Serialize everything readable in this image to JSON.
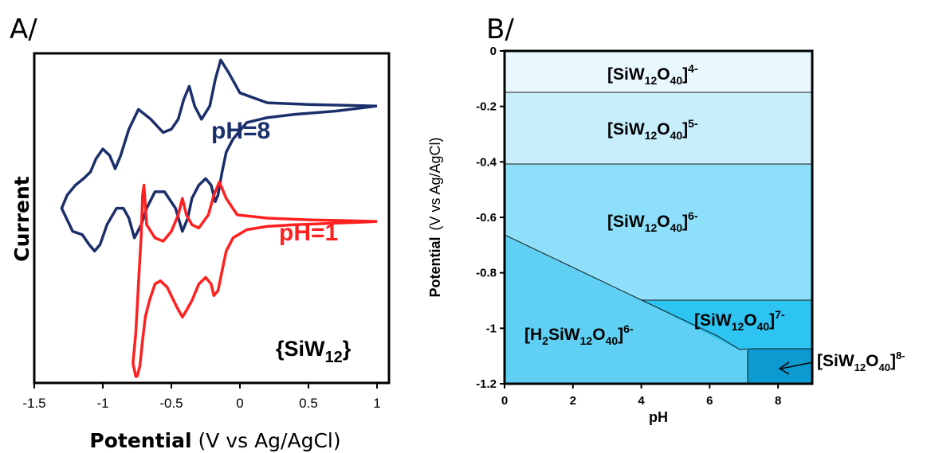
{
  "panels": {
    "a": "A/",
    "b": "B/"
  },
  "chart_data": [
    {
      "type": "line",
      "xlabel_bold": "Potential",
      "xlabel_rest": " (V vs Ag/AgCl)",
      "ylabel": "Current",
      "xlim": [
        -1.5,
        1.0
      ],
      "xticks": [
        "-1.5",
        "-1",
        "-0.5",
        "0",
        "0.5",
        "1"
      ],
      "annotation": "{SiW12}",
      "series": [
        {
          "name": "pH=8",
          "color": "#1b2f6b",
          "x": [
            1.0,
            0.9,
            0.7,
            0.4,
            0.2,
            0.05,
            -0.05,
            -0.1,
            -0.13,
            -0.16,
            -0.18,
            -0.21,
            -0.25,
            -0.3,
            -0.35,
            -0.38,
            -0.42,
            -0.47,
            -0.55,
            -0.62,
            -0.68,
            -0.72,
            -0.77,
            -0.81,
            -0.85,
            -0.9,
            -0.97,
            -1.02,
            -1.06,
            -1.1,
            -1.15,
            -1.22,
            -1.3,
            -1.26,
            -1.2,
            -1.14,
            -1.09,
            -1.05,
            -1.0,
            -0.95,
            -0.91,
            -0.87,
            -0.81,
            -0.74,
            -0.65,
            -0.56,
            -0.5,
            -0.45,
            -0.41,
            -0.37,
            -0.33,
            -0.28,
            -0.22,
            -0.18,
            -0.14,
            -0.08,
            0.0,
            0.2,
            0.5,
            0.8,
            1.0
          ],
          "y": [
            0.84,
            0.835,
            0.825,
            0.815,
            0.805,
            0.79,
            0.74,
            0.7,
            0.64,
            0.57,
            0.55,
            0.6,
            0.62,
            0.6,
            0.56,
            0.5,
            0.46,
            0.53,
            0.58,
            0.58,
            0.53,
            0.48,
            0.44,
            0.5,
            0.53,
            0.53,
            0.48,
            0.42,
            0.4,
            0.42,
            0.45,
            0.46,
            0.53,
            0.57,
            0.6,
            0.62,
            0.64,
            0.68,
            0.71,
            0.69,
            0.65,
            0.69,
            0.77,
            0.83,
            0.8,
            0.76,
            0.77,
            0.8,
            0.86,
            0.9,
            0.84,
            0.8,
            0.84,
            0.92,
            0.98,
            0.94,
            0.88,
            0.85,
            0.845,
            0.842,
            0.84
          ]
        },
        {
          "name": "pH=1",
          "color": "#ff2020",
          "x": [
            1.0,
            0.9,
            0.7,
            0.4,
            0.2,
            0.05,
            -0.05,
            -0.1,
            -0.13,
            -0.16,
            -0.19,
            -0.21,
            -0.25,
            -0.3,
            -0.35,
            -0.39,
            -0.42,
            -0.46,
            -0.53,
            -0.58,
            -0.62,
            -0.66,
            -0.69,
            -0.71,
            -0.73,
            -0.75,
            -0.76,
            -0.78,
            -0.76,
            -0.74,
            -0.72,
            -0.71,
            -0.7,
            -0.68,
            -0.62,
            -0.56,
            -0.5,
            -0.45,
            -0.42,
            -0.39,
            -0.35,
            -0.3,
            -0.23,
            -0.19,
            -0.15,
            -0.1,
            -0.02,
            0.2,
            0.5,
            0.8,
            1.0
          ],
          "y": [
            0.49,
            0.488,
            0.485,
            0.48,
            0.475,
            0.465,
            0.44,
            0.4,
            0.34,
            0.28,
            0.265,
            0.3,
            0.32,
            0.3,
            0.25,
            0.22,
            0.2,
            0.23,
            0.29,
            0.31,
            0.3,
            0.25,
            0.2,
            0.13,
            0.05,
            0.02,
            0.02,
            0.06,
            0.15,
            0.3,
            0.45,
            0.57,
            0.6,
            0.48,
            0.44,
            0.43,
            0.46,
            0.51,
            0.56,
            0.51,
            0.48,
            0.47,
            0.51,
            0.57,
            0.61,
            0.56,
            0.51,
            0.5,
            0.495,
            0.492,
            0.49
          ]
        }
      ]
    },
    {
      "type": "area",
      "xlabel": "pH",
      "ylabel": "Potential",
      "ylabel_units": "(V vs Ag/AgCl)",
      "xlim": [
        0,
        9
      ],
      "ylim": [
        -1.2,
        0
      ],
      "xticks": [
        "0",
        "2",
        "4",
        "6",
        "8"
      ],
      "yticks": [
        "0",
        "-0.2",
        "-0.4",
        "-0.6",
        "-0.8",
        "-1",
        "-1.2"
      ],
      "boundaries": [
        {
          "x": [
            0,
            9
          ],
          "y": [
            -0.15,
            -0.15
          ]
        },
        {
          "x": [
            0,
            9
          ],
          "y": [
            -0.41,
            -0.41
          ]
        },
        {
          "x": [
            0,
            4.0,
            7.1,
            7.3,
            9
          ],
          "y": [
            -0.66,
            -0.9,
            -1.08,
            -1.075,
            -1.075
          ]
        },
        {
          "x": [
            4.0,
            9
          ],
          "y": [
            -0.9,
            -0.9
          ]
        },
        {
          "x": [
            7.1,
            7.1
          ],
          "y": [
            -1.08,
            -1.2
          ]
        }
      ],
      "regions": [
        {
          "species": "[SiW12O40]4-",
          "color": "#e9f8fe"
        },
        {
          "species": "[SiW12O40]5-",
          "color": "#c8eefc"
        },
        {
          "species": "[SiW12O40]6-",
          "color": "#8ee0fa"
        },
        {
          "species": "[H2SiW12O40]6-",
          "color": "#5fd0f4"
        },
        {
          "species": "[SiW12O40]7-",
          "color": "#2ec4f2"
        },
        {
          "species": "[SiW12O40]8-",
          "color": "#0d9ad0"
        }
      ]
    }
  ]
}
